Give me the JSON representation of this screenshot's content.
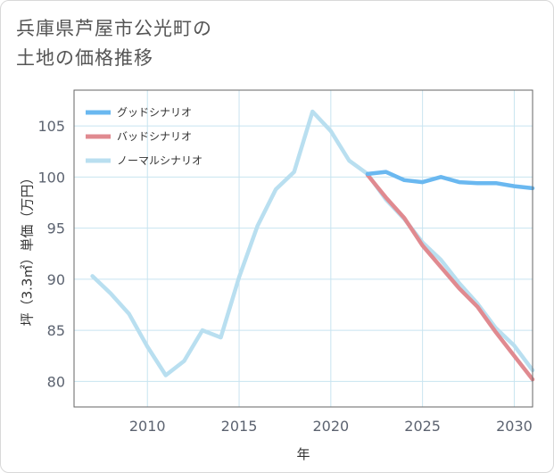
{
  "title": "兵庫県芦屋市公光町の\n土地の価格推移",
  "colors": {
    "good": "#6ab8f0",
    "bad": "#e08a90",
    "normal": "#b9dff0",
    "grid": "#c8e4f0",
    "plot_border": "#666666"
  },
  "chart_data": {
    "type": "line",
    "title": "兵庫県芦屋市公光町の土地の価格推移",
    "xlabel": "年",
    "ylabel": "坪（3.3㎡）単価（万円）",
    "xlim": [
      2006,
      2031
    ],
    "ylim": [
      77.5,
      108.5
    ],
    "x_ticks": [
      2010,
      2015,
      2020,
      2025,
      2030
    ],
    "y_ticks": [
      80,
      85,
      90,
      95,
      100,
      105
    ],
    "legend_position": "top-left",
    "series": [
      {
        "name": "グッドシナリオ",
        "color_key": "good",
        "x": [
          2022,
          2023,
          2024,
          2025,
          2026,
          2027,
          2028,
          2029,
          2030,
          2031
        ],
        "values": [
          100.3,
          100.5,
          99.7,
          99.5,
          100.0,
          99.5,
          99.4,
          99.4,
          99.1,
          98.9
        ]
      },
      {
        "name": "バッドシナリオ",
        "color_key": "bad",
        "x": [
          2022,
          2023,
          2024,
          2025,
          2026,
          2027,
          2028,
          2029,
          2030,
          2031
        ],
        "values": [
          100.2,
          98.0,
          96.0,
          93.3,
          91.2,
          89.1,
          87.3,
          84.8,
          82.5,
          80.2
        ]
      },
      {
        "name": "ノーマルシナリオ",
        "color_key": "normal",
        "x": [
          2007,
          2008,
          2009,
          2010,
          2011,
          2012,
          2013,
          2014,
          2015,
          2016,
          2017,
          2018,
          2019,
          2020,
          2021,
          2022,
          2023,
          2024,
          2025,
          2026,
          2027,
          2028,
          2029,
          2030,
          2031
        ],
        "values": [
          90.3,
          88.6,
          86.6,
          83.4,
          80.6,
          82.0,
          85.0,
          84.3,
          90.2,
          95.2,
          98.8,
          100.5,
          106.4,
          104.5,
          101.6,
          100.3,
          97.8,
          95.9,
          93.6,
          91.9,
          89.6,
          87.6,
          85.2,
          83.5,
          81.1
        ]
      }
    ]
  }
}
